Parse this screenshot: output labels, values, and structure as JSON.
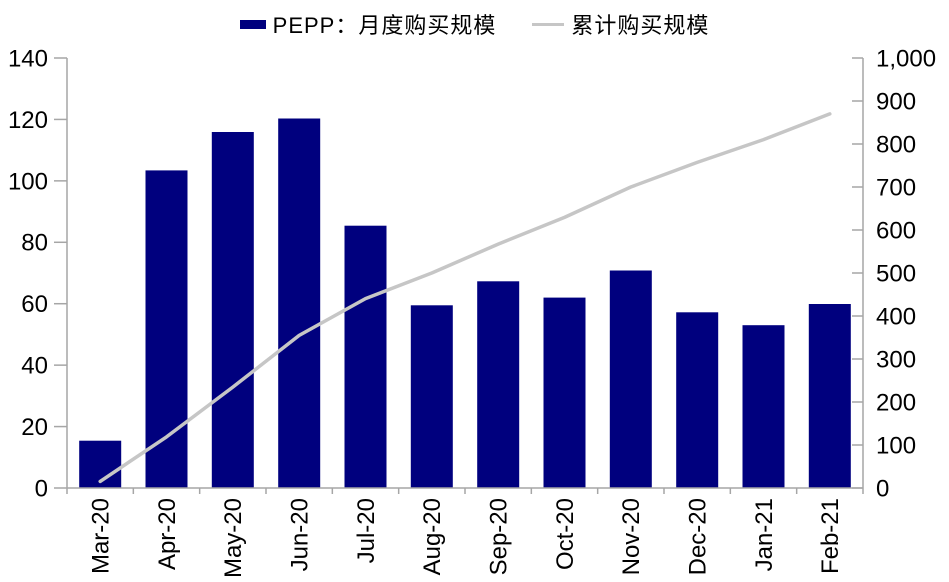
{
  "legend": {
    "bar_label": "PEPP：月度购买规模",
    "line_label": "累计购买规模"
  },
  "colors": {
    "bar": "#00007E",
    "line": "#C6C6C6",
    "axis": "#A6A6A6",
    "text": "#000000",
    "background": "#FFFFFF"
  },
  "chart_data": {
    "type": "combo",
    "title": "",
    "grid": false,
    "legend_position": "top",
    "categories": [
      "Mar-20",
      "Apr-20",
      "May-20",
      "Jun-20",
      "Jul-20",
      "Aug-20",
      "Sep-20",
      "Oct-20",
      "Nov-20",
      "Dec-20",
      "Jan-21",
      "Feb-21"
    ],
    "series": [
      {
        "name": "PEPP：月度购买规模",
        "type": "bar",
        "axis": "left",
        "color": "#00007E",
        "values": [
          15.4,
          103.4,
          115.9,
          120.3,
          85.4,
          59.5,
          67.3,
          62.0,
          70.8,
          57.2,
          53.0,
          59.9
        ]
      },
      {
        "name": "累计购买规模",
        "type": "line",
        "axis": "right",
        "color": "#C6C6C6",
        "values": [
          15.4,
          118.8,
          234.7,
          355.0,
          440.4,
          499.9,
          567.2,
          629.2,
          700.0,
          757.2,
          810.2,
          870.1
        ]
      }
    ],
    "left_axis": {
      "min": 0,
      "max": 140,
      "step": 20,
      "tick_labels": [
        "0",
        "20",
        "40",
        "60",
        "80",
        "100",
        "120",
        "140"
      ]
    },
    "right_axis": {
      "min": 0,
      "max": 1000,
      "step": 100,
      "tick_labels": [
        "0",
        "100",
        "200",
        "300",
        "400",
        "500",
        "600",
        "700",
        "800",
        "900",
        "1,000"
      ]
    }
  }
}
